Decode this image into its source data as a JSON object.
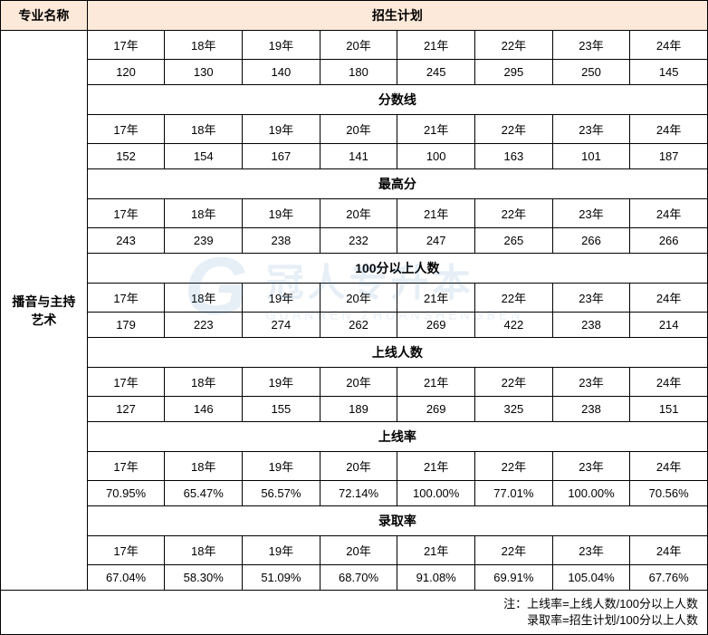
{
  "colors": {
    "header_bg": "#fde9d9",
    "border": "#000000",
    "background": "#ffffff",
    "watermark": "#3a7abc"
  },
  "header": {
    "major_label": "专业名称",
    "plan_label": "招生计划"
  },
  "major_name": "播音与主持艺术",
  "years": [
    "17年",
    "18年",
    "19年",
    "20年",
    "21年",
    "22年",
    "23年",
    "24年"
  ],
  "sections": [
    {
      "title": "招生计划",
      "values": [
        "120",
        "130",
        "140",
        "180",
        "245",
        "295",
        "250",
        "145"
      ]
    },
    {
      "title": "分数线",
      "values": [
        "152",
        "154",
        "167",
        "141",
        "100",
        "163",
        "101",
        "187"
      ]
    },
    {
      "title": "最高分",
      "values": [
        "243",
        "239",
        "238",
        "232",
        "247",
        "265",
        "266",
        "266"
      ]
    },
    {
      "title": "100分以上人数",
      "values": [
        "179",
        "223",
        "274",
        "262",
        "269",
        "422",
        "238",
        "214"
      ]
    },
    {
      "title": "上线人数",
      "values": [
        "127",
        "146",
        "155",
        "189",
        "269",
        "325",
        "238",
        "151"
      ]
    },
    {
      "title": "上线率",
      "values": [
        "70.95%",
        "65.47%",
        "56.57%",
        "72.14%",
        "100.00%",
        "77.01%",
        "100.00%",
        "70.56%"
      ]
    },
    {
      "title": "录取率",
      "values": [
        "67.04%",
        "58.30%",
        "51.09%",
        "68.70%",
        "91.08%",
        "69.91%",
        "105.04%",
        "67.76%"
      ]
    }
  ],
  "note_line1": "注：上线率=上线人数/100分以上人数",
  "note_line2": "录取率=招生计划/100分以上人数",
  "watermark": {
    "logo": "G",
    "cn": "冠人专升本",
    "pinyin": "GUANREN ZHUANSHENGBEN"
  }
}
